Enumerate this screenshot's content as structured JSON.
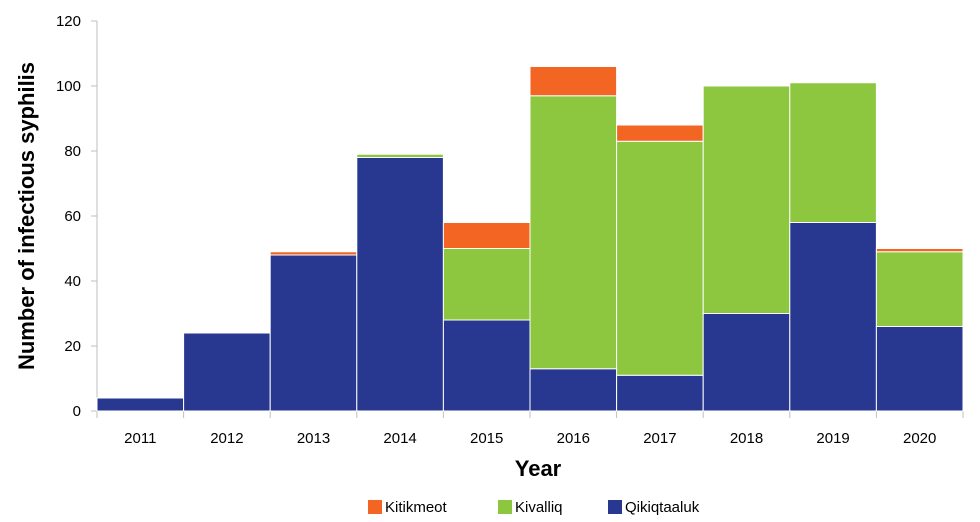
{
  "chart_data": {
    "type": "bar",
    "stacked": true,
    "title": "",
    "xlabel": "Year",
    "ylabel": "Number of infectious syphilis",
    "ylim": [
      0,
      120
    ],
    "yticks": [
      0,
      20,
      40,
      60,
      80,
      100,
      120
    ],
    "grid": false,
    "legend_position": "bottom-center",
    "categories": [
      "2011",
      "2012",
      "2013",
      "2014",
      "2015",
      "2016",
      "2017",
      "2018",
      "2019",
      "2020"
    ],
    "series": [
      {
        "name": "Qikiqtaaluk",
        "color": "#283891",
        "values": [
          4,
          24,
          48,
          78,
          28,
          13,
          11,
          30,
          58,
          26
        ]
      },
      {
        "name": "Kivalliq",
        "color": "#8dc63f",
        "values": [
          0,
          0,
          0,
          1,
          22,
          84,
          72,
          70,
          43,
          23
        ]
      },
      {
        "name": "Kitikmeot",
        "color": "#f26522",
        "values": [
          0,
          0,
          1,
          0,
          8,
          9,
          5,
          0,
          0,
          1
        ]
      }
    ],
    "legend_order": [
      "Kitikmeot",
      "Kivalliq",
      "Qikiqtaaluk"
    ]
  }
}
